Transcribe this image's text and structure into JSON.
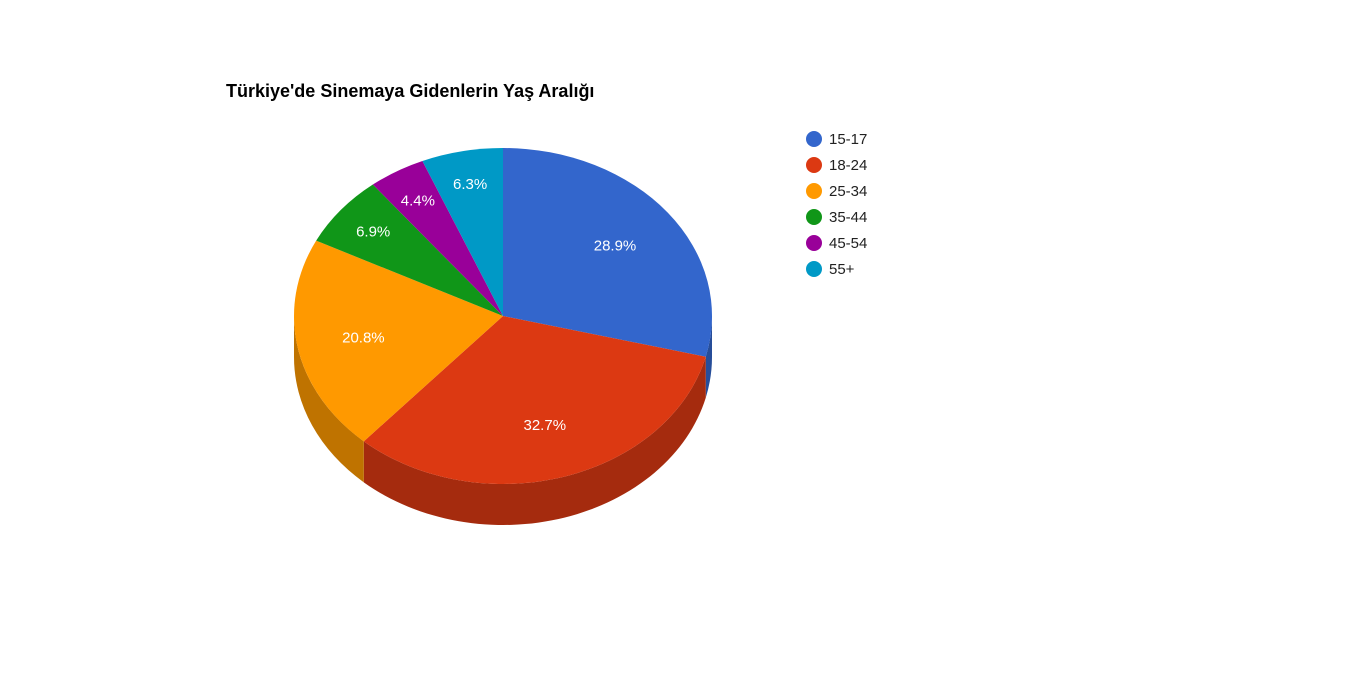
{
  "chart_data": {
    "type": "pie",
    "title": "Türkiye'de Sinemaya Gidenlerin Yaş Aralığı",
    "legend_position": "right",
    "three_d": true,
    "slices": [
      {
        "label": "15-17",
        "value": 28.9,
        "display": "28.9%",
        "color": "#3366cc"
      },
      {
        "label": "18-24",
        "value": 32.7,
        "display": "32.7%",
        "color": "#dc3912"
      },
      {
        "label": "25-34",
        "value": 20.8,
        "display": "20.8%",
        "color": "#ff9900"
      },
      {
        "label": "35-44",
        "value": 6.9,
        "display": "6.9%",
        "color": "#109618"
      },
      {
        "label": "45-54",
        "value": 4.4,
        "display": "4.4%",
        "color": "#990099"
      },
      {
        "label": "55+",
        "value": 6.3,
        "display": "6.3%",
        "color": "#0099c6"
      }
    ]
  }
}
